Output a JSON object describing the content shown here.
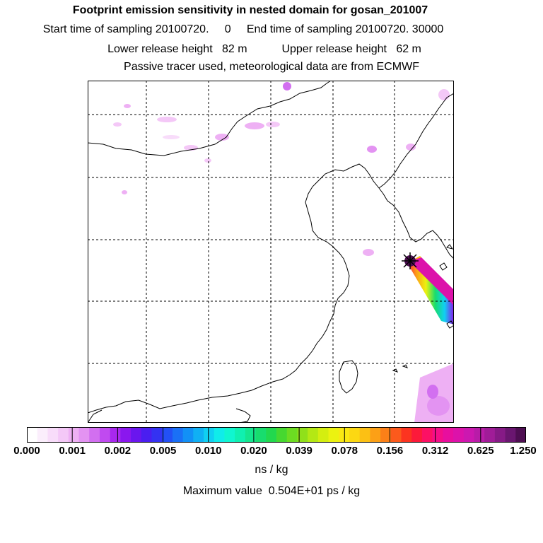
{
  "header": {
    "title": "Footprint emission sensitivity in nested domain for gosan_201007",
    "sampling": "Start time of sampling 20100720.     0     End time of sampling 20100720. 30000",
    "release": "Lower release height   82 m           Upper release height   62 m",
    "tracer": "Passive tracer used, meteorological data are from ECMWF"
  },
  "colorbar": {
    "tick_labels": [
      "0.000",
      "0.001",
      "0.002",
      "0.005",
      "0.010",
      "0.020",
      "0.039",
      "0.078",
      "0.156",
      "0.312",
      "0.625",
      "1.250"
    ],
    "colors": [
      "#ffffff",
      "#fbeefc",
      "#f8dcfa",
      "#f4c8f7",
      "#eeb0f4",
      "#e393f2",
      "#d26ff0",
      "#c04af0",
      "#a828ef",
      "#8a17ee",
      "#6a16ee",
      "#4a1ef0",
      "#3432f2",
      "#2350f5",
      "#1a70f6",
      "#1290f6",
      "#10b0f4",
      "#10d0f2",
      "#10ecea",
      "#10f6d0",
      "#10f0b0",
      "#14e68e",
      "#18dc6e",
      "#22d84e",
      "#46d830",
      "#6cdc22",
      "#90e01a",
      "#b4e814",
      "#d4ee10",
      "#ecf210",
      "#fae812",
      "#fcd812",
      "#fcc014",
      "#fca016",
      "#fc8018",
      "#fc5a1c",
      "#fc3420",
      "#fc1a3a",
      "#fc1064",
      "#f40e88",
      "#e80e9e",
      "#dc12aa",
      "#cc18b0",
      "#b81ca8",
      "#a01c98",
      "#861a86",
      "#6a1670",
      "#4e0e52"
    ],
    "unit": "ns / kg"
  },
  "footer": {
    "max_value": "Maximum value  0.504E+01 ps / kg"
  }
}
